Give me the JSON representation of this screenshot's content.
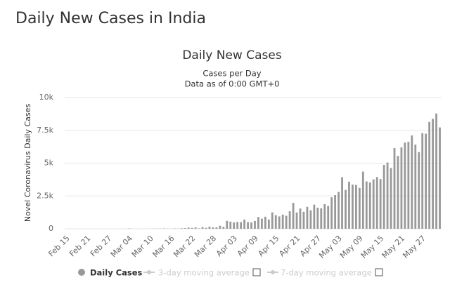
{
  "header": {
    "title": "Daily New Cases in India"
  },
  "chart_data": {
    "type": "bar",
    "title": "Daily New Cases",
    "subtitle": [
      "Cases per Day",
      "Data as of 0:00 GMT+0"
    ],
    "y_label": "Novel Coronavirus Daily Cases",
    "categories": [
      "Feb 15",
      null,
      null,
      null,
      null,
      null,
      "Feb 21",
      null,
      null,
      null,
      null,
      null,
      "Feb 27",
      null,
      null,
      null,
      null,
      null,
      "Mar 04",
      null,
      null,
      null,
      null,
      null,
      "Mar 10",
      null,
      null,
      null,
      null,
      null,
      "Mar 16",
      null,
      null,
      null,
      null,
      null,
      "Mar 22",
      null,
      null,
      null,
      null,
      null,
      "Mar 28",
      null,
      null,
      null,
      null,
      null,
      "Apr 03",
      null,
      null,
      null,
      null,
      null,
      "Apr 09",
      null,
      null,
      null,
      null,
      null,
      "Apr 15",
      null,
      null,
      null,
      null,
      null,
      "Apr 21",
      null,
      null,
      null,
      null,
      null,
      "Apr 27",
      null,
      null,
      null,
      null,
      null,
      "May 03",
      null,
      null,
      null,
      null,
      null,
      "May 09",
      null,
      null,
      null,
      null,
      null,
      "May 15",
      null,
      null,
      null,
      null,
      null,
      "May 21",
      null,
      null,
      null,
      null,
      null,
      "May 27",
      null,
      null,
      null,
      null,
      null
    ],
    "series": [
      {
        "name": "Daily Cases",
        "color": "#999999",
        "values": [
          0,
          0,
          0,
          0,
          0,
          0,
          0,
          0,
          0,
          0,
          0,
          0,
          0,
          0,
          0,
          0,
          2,
          1,
          22,
          2,
          1,
          3,
          5,
          4,
          6,
          11,
          11,
          9,
          20,
          11,
          6,
          23,
          14,
          38,
          50,
          86,
          66,
          103,
          37,
          121,
          70,
          160,
          100,
          106,
          227,
          146,
          601,
          545,
          478,
          525,
          505,
          704,
          508,
          485,
          591,
          896,
          768,
          918,
          705,
          1248,
          1034,
          941,
          1076,
          991,
          1334,
          1976,
          1240,
          1537,
          1292,
          1667,
          1408,
          1835,
          1607,
          1561,
          1873,
          1738,
          2396,
          2564,
          2806,
          3932,
          2963,
          3587,
          3364,
          3344,
          3113,
          4353,
          3607,
          3524,
          3763,
          3942,
          3787,
          4864,
          5050,
          4630,
          6147,
          5553,
          6198,
          6568,
          6629,
          7113,
          6414,
          5843,
          7294,
          7246,
          8142,
          8380,
          8782,
          7723
        ]
      }
    ],
    "legend_extra": [
      "3-day moving average",
      "7-day moving average"
    ],
    "ylim": [
      0,
      10000
    ],
    "yticks": [
      0,
      {
        "value": 2500,
        "label": "2.5k"
      },
      {
        "value": 5000,
        "label": "5k"
      },
      {
        "value": 7500,
        "label": "7.5k"
      },
      {
        "value": 10000,
        "label": "10k"
      }
    ],
    "grid": true
  }
}
